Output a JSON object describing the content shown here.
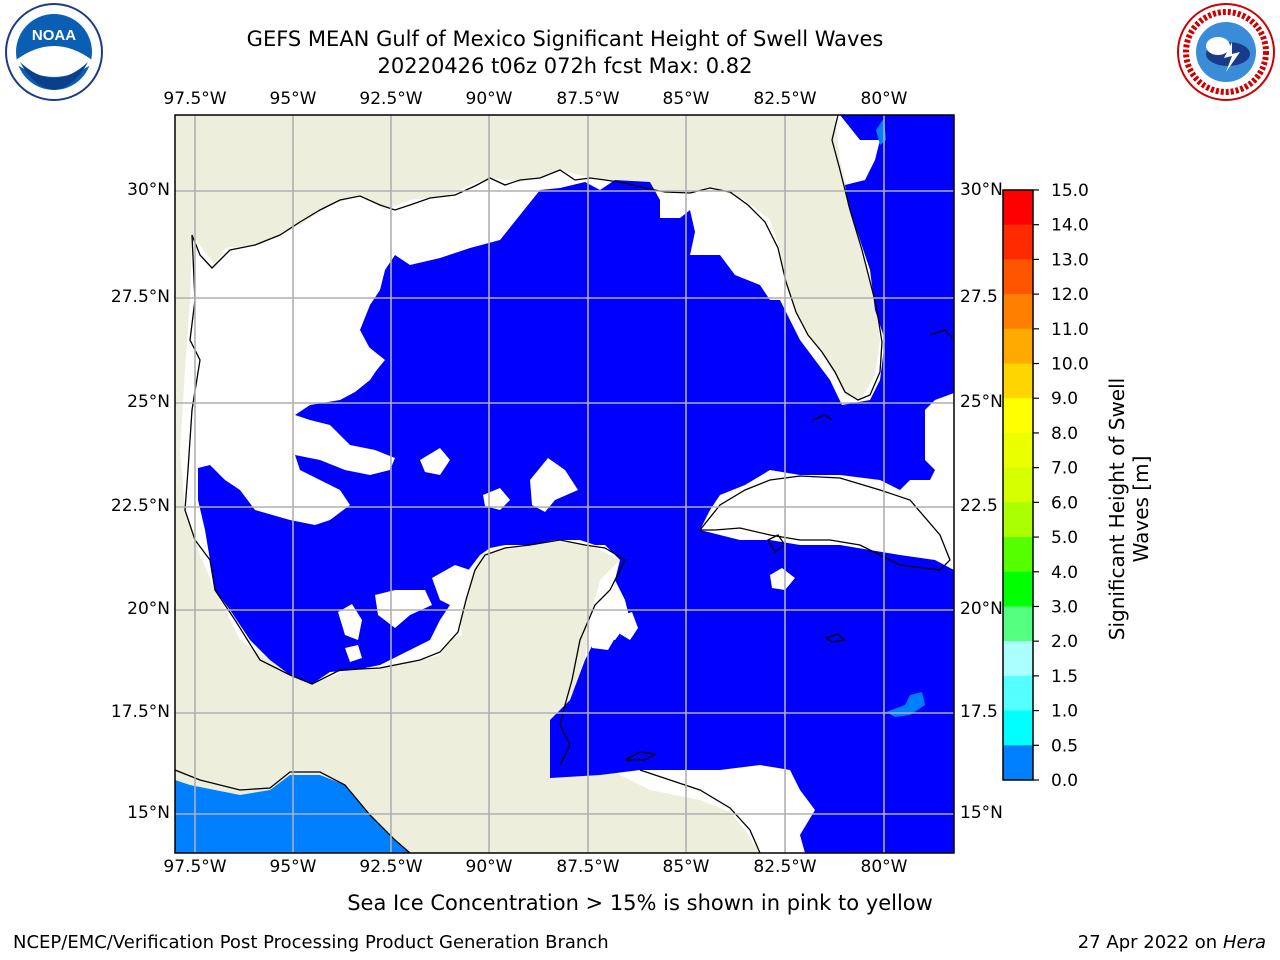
{
  "title": {
    "line1": "GEFS MEAN Gulf of Mexico Significant Height of Swell Waves",
    "line2": "20220426 t06z 072h fcst   Max: 0.82"
  },
  "logos": {
    "left": {
      "icon": "noaa-logo",
      "text": "NOAA"
    },
    "right": {
      "icon": "national-weather-service-logo",
      "text": "NATIONAL WEATHER SERVICE"
    }
  },
  "map": {
    "lon_ticks": [
      "97.5°W",
      "95°W",
      "92.5°W",
      "90°W",
      "87.5°W",
      "85°W",
      "82.5°W",
      "80°W"
    ],
    "lat_ticks_left": [
      "30°N",
      "27.5°N",
      "25°N",
      "22.5°N",
      "20°N",
      "17.5°N",
      "15°N"
    ],
    "lat_ticks_right": [
      "30°N",
      "27.5",
      "25°N",
      "22.5",
      "20°N",
      "17.5",
      "15°N"
    ],
    "colors": {
      "land": "#eeeedc",
      "missing": "#ffffff",
      "swell_0_0_5": "#0000ff",
      "swell_0_5_1_0": "#0080ff",
      "grid": "#b0b0b0"
    }
  },
  "colorbar": {
    "label": "Significant Height of Swell Waves [m]",
    "label_line1": "Significant Height of Swell",
    "label_line2": "Waves [m]",
    "ticks": [
      "15.0",
      "14.0",
      "13.0",
      "12.0",
      "11.0",
      "10.0",
      "9.0",
      "8.0",
      "7.0",
      "6.0",
      "5.0",
      "4.0",
      "3.0",
      "2.0",
      "1.5",
      "1.0",
      "0.5",
      "0.0"
    ],
    "colors": [
      "#ff0000",
      "#ff2a00",
      "#ff5500",
      "#ff8000",
      "#ffaa00",
      "#ffd500",
      "#ffff00",
      "#eaff00",
      "#d5ff00",
      "#aaff00",
      "#55ff00",
      "#00ff00",
      "#55ff80",
      "#aaffff",
      "#55ffff",
      "#00ffff",
      "#0080ff",
      "#0000ff"
    ]
  },
  "caption": "Sea Ice Concentration > 15% is shown in pink to yellow",
  "footer": {
    "left": "NCEP/EMC/Verification Post Processing Product Generation Branch",
    "right_date": "27 Apr 2022 on ",
    "right_host": "Hera"
  }
}
